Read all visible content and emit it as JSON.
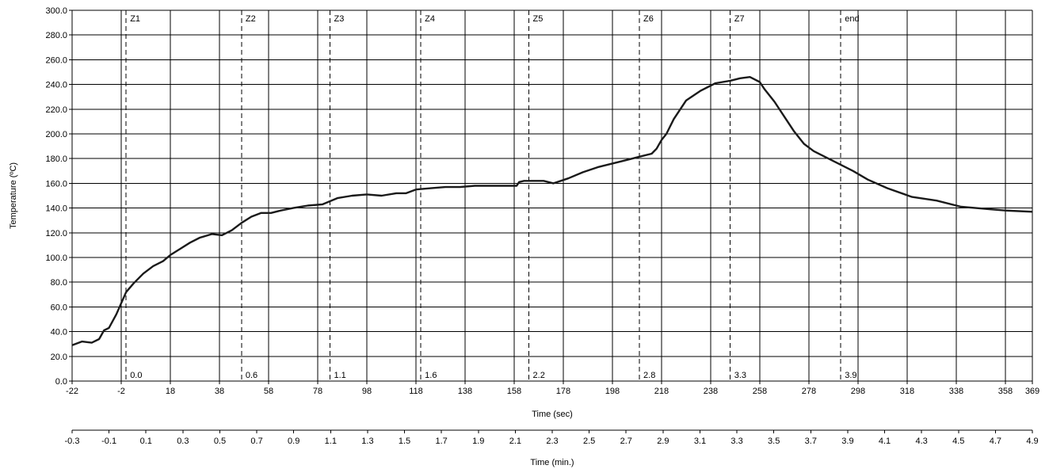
{
  "chart_data": {
    "type": "line",
    "ylabel": "Temperature (ºC)",
    "xlabel": "Time (sec)",
    "x2label": "Time (min.)",
    "ylim": [
      0,
      300
    ],
    "xlim": [
      -22,
      369
    ],
    "y_ticks": [
      "0.0",
      "20.0",
      "40.0",
      "60.0",
      "80.0",
      "100.0",
      "120.0",
      "140.0",
      "160.0",
      "180.0",
      "200.0",
      "220.0",
      "240.0",
      "260.0",
      "280.0",
      "300.0"
    ],
    "x_ticks": [
      "-22",
      "-2",
      "18",
      "38",
      "58",
      "78",
      "98",
      "118",
      "138",
      "158",
      "178",
      "198",
      "218",
      "238",
      "258",
      "278",
      "298",
      "318",
      "338",
      "358",
      "369"
    ],
    "x2_ticks": [
      "-0.3",
      "-0.1",
      "0.1",
      "0.3",
      "0.5",
      "0.7",
      "0.9",
      "1.1",
      "1.3",
      "1.5",
      "1.7",
      "1.9",
      "2.1",
      "2.3",
      "2.5",
      "2.7",
      "2.9",
      "3.1",
      "3.3",
      "3.5",
      "3.7",
      "3.9",
      "4.1",
      "4.3",
      "4.5",
      "4.7",
      "4.9"
    ],
    "grid": true,
    "zones": [
      {
        "top": "Z1",
        "bottom": "0.0",
        "x": 0
      },
      {
        "top": "Z2",
        "bottom": "0.6",
        "x": 47
      },
      {
        "top": "Z3",
        "bottom": "1.1",
        "x": 83
      },
      {
        "top": "Z4",
        "bottom": "1.6",
        "x": 120
      },
      {
        "top": "Z5",
        "bottom": "2.2",
        "x": 164
      },
      {
        "top": "Z6",
        "bottom": "2.8",
        "x": 209
      },
      {
        "top": "Z7",
        "bottom": "3.3",
        "x": 246
      },
      {
        "top": "end",
        "bottom": "3.9",
        "x": 291
      }
    ],
    "series": [
      {
        "x": [
          -22,
          -18,
          -14,
          -11,
          -9,
          -7,
          -4,
          -2,
          0,
          3,
          7,
          11,
          15,
          18,
          22,
          26,
          30,
          35,
          39,
          43,
          47,
          51,
          55,
          59,
          63,
          68,
          74,
          80,
          86,
          92,
          98,
          104,
          110,
          114,
          118,
          124,
          130,
          136,
          142,
          148,
          154,
          159,
          160,
          162,
          166,
          170,
          174,
          177,
          180,
          186,
          192,
          198,
          204,
          210,
          214,
          216,
          218,
          220,
          223,
          228,
          234,
          240,
          246,
          250,
          254,
          258,
          260,
          264,
          268,
          272,
          276,
          280,
          286,
          292,
          296,
          302,
          310,
          320,
          330,
          340,
          346,
          352,
          358,
          369
        ],
        "y": [
          29,
          32,
          31,
          34,
          41,
          43,
          54,
          63,
          72,
          79,
          87,
          93,
          97,
          102,
          107,
          112,
          116,
          119,
          118,
          122,
          128,
          133,
          136,
          136,
          138,
          140,
          142,
          143,
          148,
          150,
          151,
          150,
          152,
          152,
          155,
          156,
          157,
          157,
          158,
          158,
          158,
          158,
          161,
          162,
          162,
          162,
          160,
          162,
          164,
          169,
          173,
          176,
          179,
          182,
          184,
          188,
          195,
          200,
          212,
          227,
          235,
          241,
          243,
          245,
          246,
          242,
          236,
          226,
          214,
          202,
          192,
          186,
          180,
          174,
          170,
          163,
          156,
          149,
          146,
          141,
          140,
          139,
          138,
          137
        ]
      }
    ]
  }
}
